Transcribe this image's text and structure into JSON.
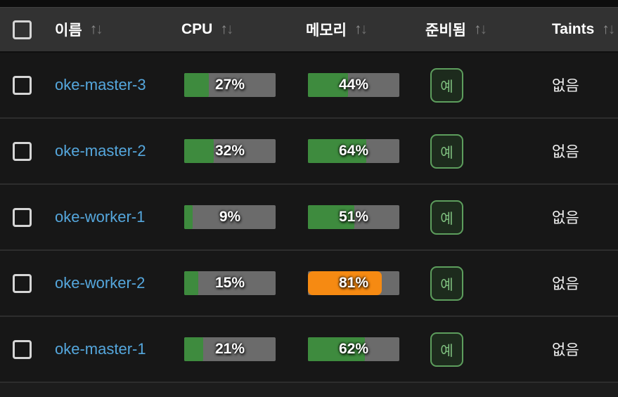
{
  "header": {
    "select_all_checked": false,
    "columns": [
      {
        "label": "이름"
      },
      {
        "label": "CPU"
      },
      {
        "label": "메모리"
      },
      {
        "label": "준비됨"
      },
      {
        "label": "Taints"
      }
    ]
  },
  "icons": {
    "sort_asc": "↑",
    "sort_desc": "↓"
  },
  "rows": [
    {
      "name": "oke-master-3",
      "cpu_percent": 27,
      "cpu_label": "27%",
      "cpu_color": "green",
      "mem_percent": 44,
      "mem_label": "44%",
      "mem_color": "green",
      "ready": "예",
      "taints": "없음"
    },
    {
      "name": "oke-master-2",
      "cpu_percent": 32,
      "cpu_label": "32%",
      "cpu_color": "green",
      "mem_percent": 64,
      "mem_label": "64%",
      "mem_color": "green",
      "ready": "예",
      "taints": "없음"
    },
    {
      "name": "oke-worker-1",
      "cpu_percent": 9,
      "cpu_label": "9%",
      "cpu_color": "green",
      "mem_percent": 51,
      "mem_label": "51%",
      "mem_color": "green",
      "ready": "예",
      "taints": "없음"
    },
    {
      "name": "oke-worker-2",
      "cpu_percent": 15,
      "cpu_label": "15%",
      "cpu_color": "green",
      "mem_percent": 81,
      "mem_label": "81%",
      "mem_color": "orange",
      "ready": "예",
      "taints": "없음"
    },
    {
      "name": "oke-master-1",
      "cpu_percent": 21,
      "cpu_label": "21%",
      "cpu_color": "green",
      "mem_percent": 62,
      "mem_label": "62%",
      "mem_color": "green",
      "ready": "예",
      "taints": "없음"
    }
  ],
  "colors": {
    "row_background": "#171717",
    "header_background": "#323232",
    "bar_track": "#6b6b6b",
    "bar_green": "#3e8b3e",
    "bar_orange": "#f68a12",
    "link_blue": "#55a7dd",
    "badge_border": "#5d9e5d",
    "badge_background": "#1d2b1d",
    "badge_text": "#7fbf7f"
  }
}
